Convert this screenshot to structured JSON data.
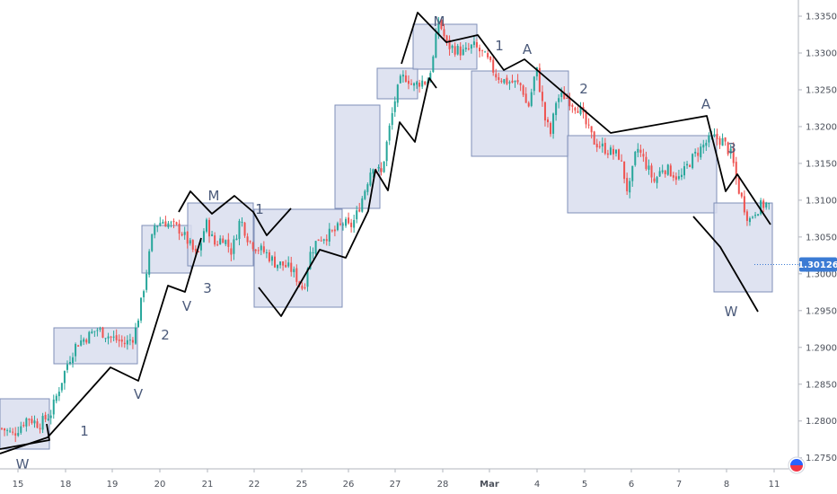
{
  "chart_data": {
    "type": "candlestick",
    "instrument_axis": "price",
    "ylim": [
      1.2735,
      1.3372
    ],
    "y_ticks": [
      "1.33500",
      "1.33000",
      "1.32500",
      "1.32000",
      "1.31500",
      "1.31000",
      "1.30500",
      "1.30000",
      "1.29500",
      "1.29000",
      "1.28500",
      "1.28000",
      "1.27500"
    ],
    "x_ticks": [
      "15",
      "18",
      "19",
      "20",
      "21",
      "22",
      "25",
      "26",
      "27",
      "28",
      "Mar",
      "4",
      "5",
      "6",
      "7",
      "8",
      "11"
    ],
    "last_price": "1.30126",
    "last_price_value": 1.30126,
    "colors": {
      "up": "#26a69a",
      "down": "#ef5350",
      "box_fill": "#d9deef",
      "box_stroke": "#7f8fb8",
      "wave_line": "#000000",
      "label": "#4b5a7a",
      "price_tag": "#3b7bd4"
    },
    "price_path": [
      [
        0,
        1.279
      ],
      [
        0.4,
        1.2782
      ],
      [
        0.9,
        1.2805
      ],
      [
        1.3,
        1.2795
      ],
      [
        1.7,
        1.281
      ],
      [
        2.0,
        1.2845
      ],
      [
        2.3,
        1.288
      ],
      [
        2.6,
        1.2905
      ],
      [
        3.0,
        1.2915
      ],
      [
        3.3,
        1.2925
      ],
      [
        3.6,
        1.2918
      ],
      [
        3.9,
        1.2912
      ],
      [
        4.3,
        1.2905
      ],
      [
        4.6,
        1.2915
      ],
      [
        4.8,
        1.295
      ],
      [
        5.0,
        1.2995
      ],
      [
        5.3,
        1.3065
      ],
      [
        5.6,
        1.3072
      ],
      [
        5.9,
        1.3066
      ],
      [
        6.2,
        1.306
      ],
      [
        6.5,
        1.3042
      ],
      [
        6.8,
        1.3022
      ],
      [
        7.1,
        1.307
      ],
      [
        7.4,
        1.304
      ],
      [
        7.7,
        1.305
      ],
      [
        8.0,
        1.303
      ],
      [
        8.3,
        1.3075
      ],
      [
        8.6,
        1.3045
      ],
      [
        8.9,
        1.3035
      ],
      [
        9.2,
        1.3028
      ],
      [
        9.5,
        1.3015
      ],
      [
        9.8,
        1.3012
      ],
      [
        10.1,
        1.3005
      ],
      [
        10.4,
        1.2985
      ],
      [
        10.5,
        1.2978
      ],
      [
        10.7,
        1.3025
      ],
      [
        11.0,
        1.3048
      ],
      [
        11.3,
        1.3052
      ],
      [
        11.6,
        1.3058
      ],
      [
        11.9,
        1.307
      ],
      [
        12.1,
        1.3062
      ],
      [
        12.3,
        1.3075
      ],
      [
        12.6,
        1.311
      ],
      [
        12.9,
        1.315
      ],
      [
        13.2,
        1.3135
      ],
      [
        13.5,
        1.32
      ],
      [
        13.7,
        1.324
      ],
      [
        13.9,
        1.3265
      ],
      [
        14.1,
        1.3268
      ],
      [
        14.3,
        1.3254
      ],
      [
        14.6,
        1.3262
      ],
      [
        14.8,
        1.326
      ],
      [
        15.0,
        1.329
      ],
      [
        15.2,
        1.3345
      ],
      [
        15.5,
        1.331
      ],
      [
        15.8,
        1.3305
      ],
      [
        16.1,
        1.33
      ],
      [
        16.4,
        1.331
      ],
      [
        16.7,
        1.33
      ],
      [
        16.9,
        1.329
      ],
      [
        17.2,
        1.327
      ],
      [
        17.5,
        1.3262
      ],
      [
        17.8,
        1.326
      ],
      [
        18.1,
        1.3255
      ],
      [
        18.3,
        1.3222
      ],
      [
        18.6,
        1.328
      ],
      [
        18.9,
        1.321
      ],
      [
        19.1,
        1.319
      ],
      [
        19.3,
        1.3238
      ],
      [
        19.6,
        1.3242
      ],
      [
        19.9,
        1.323
      ],
      [
        20.1,
        1.3225
      ],
      [
        20.3,
        1.3205
      ],
      [
        20.6,
        1.318
      ],
      [
        20.9,
        1.3172
      ],
      [
        21.2,
        1.3165
      ],
      [
        21.5,
        1.316
      ],
      [
        21.8,
        1.3108
      ],
      [
        22.1,
        1.3172
      ],
      [
        22.4,
        1.315
      ],
      [
        22.7,
        1.3125
      ],
      [
        23.0,
        1.3145
      ],
      [
        23.3,
        1.3138
      ],
      [
        23.6,
        1.3128
      ],
      [
        23.9,
        1.315
      ],
      [
        24.2,
        1.3165
      ],
      [
        24.5,
        1.3178
      ],
      [
        24.8,
        1.3185
      ],
      [
        25.1,
        1.318
      ],
      [
        25.4,
        1.316
      ],
      [
        25.6,
        1.312
      ],
      [
        25.8,
        1.3095
      ],
      [
        26.0,
        1.3072
      ],
      [
        26.2,
        1.3085
      ],
      [
        26.4,
        1.3092
      ],
      [
        26.6,
        1.3095
      ],
      [
        26.8,
        1.309
      ],
      [
        27.0,
        1.305
      ],
      [
        27.2,
        1.301
      ],
      [
        27.4,
        1.3008
      ],
      [
        27.6,
        1.3013
      ]
    ]
  },
  "wave_labels": [
    {
      "text": "W"
    },
    {
      "text": "1"
    },
    {
      "text": "2"
    },
    {
      "text": "V"
    },
    {
      "text": "V"
    },
    {
      "text": "3"
    },
    {
      "text": "M"
    },
    {
      "text": "1"
    },
    {
      "text": "M"
    },
    {
      "text": "1"
    },
    {
      "text": "A"
    },
    {
      "text": "2"
    },
    {
      "text": "A"
    },
    {
      "text": "3"
    },
    {
      "text": "W"
    }
  ]
}
